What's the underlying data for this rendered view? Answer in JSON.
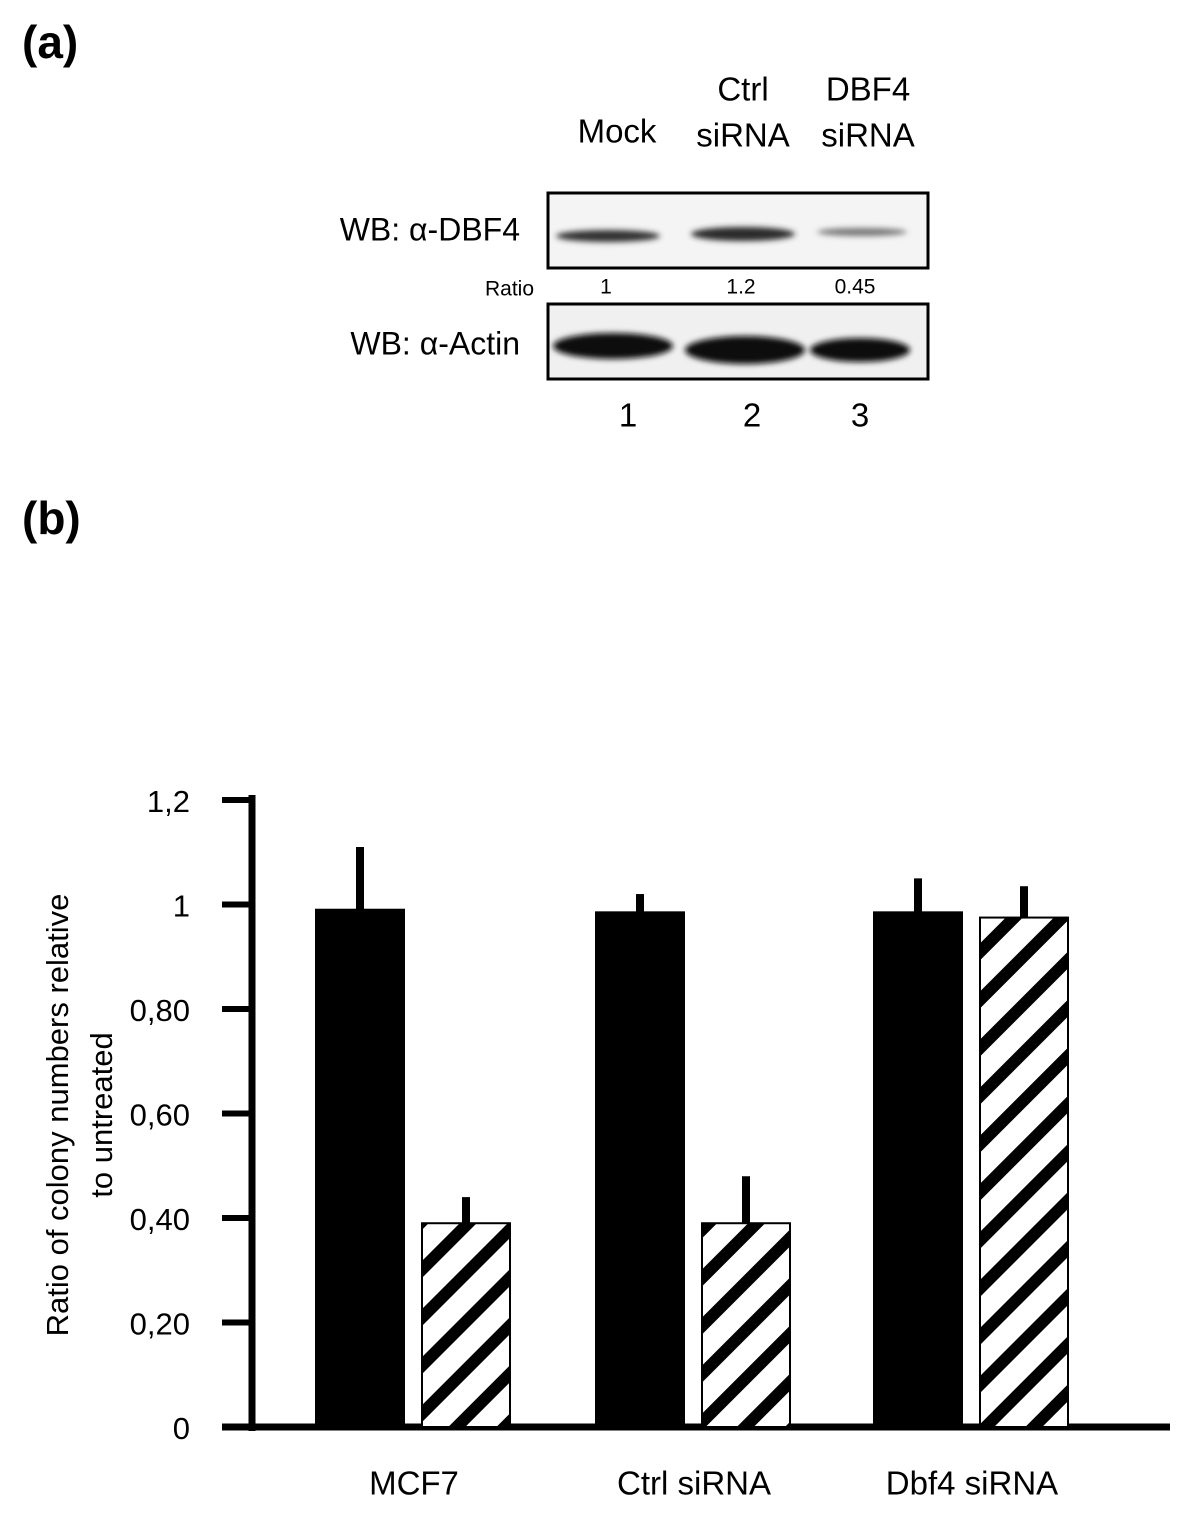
{
  "panel_a": {
    "label": "(a)",
    "lanes": [
      [
        "Mock"
      ],
      [
        "Ctrl",
        "siRNA"
      ],
      [
        "DBF4",
        "siRNA"
      ]
    ],
    "blots": [
      "WB: α-DBF4",
      "WB: α-Actin"
    ],
    "ratio_label": "Ratio",
    "ratios": [
      1,
      1.2,
      0.45
    ],
    "lane_numbers": [
      1,
      2,
      3
    ]
  },
  "chart_data": {
    "type": "bar",
    "panel_label": "(b)",
    "ylabel": [
      "Ratio of colony numbers relative",
      "to untreated"
    ],
    "categories": [
      "MCF7",
      "Ctrl siRNA",
      "Dbf4 siRNA"
    ],
    "series": [
      {
        "color": "#000000",
        "pattern": "solid",
        "values": [
          0.99,
          0.985,
          0.985
        ],
        "errors": [
          0.12,
          0.035,
          0.065
        ]
      },
      {
        "color": "#000000",
        "pattern": "hatch",
        "values": [
          0.39,
          0.39,
          0.975
        ],
        "errors": [
          0.05,
          0.09,
          0.06
        ]
      }
    ],
    "ylim": [
      0,
      1.2
    ],
    "yticks": [
      0,
      {
        "value": 0.2,
        "label": "0,20"
      },
      {
        "value": 0.4,
        "label": "0,40"
      },
      {
        "value": 0.6,
        "label": "0,60"
      },
      {
        "value": 0.8,
        "label": "0,80"
      },
      1,
      {
        "value": 1.2,
        "label": "1,2"
      }
    ]
  }
}
